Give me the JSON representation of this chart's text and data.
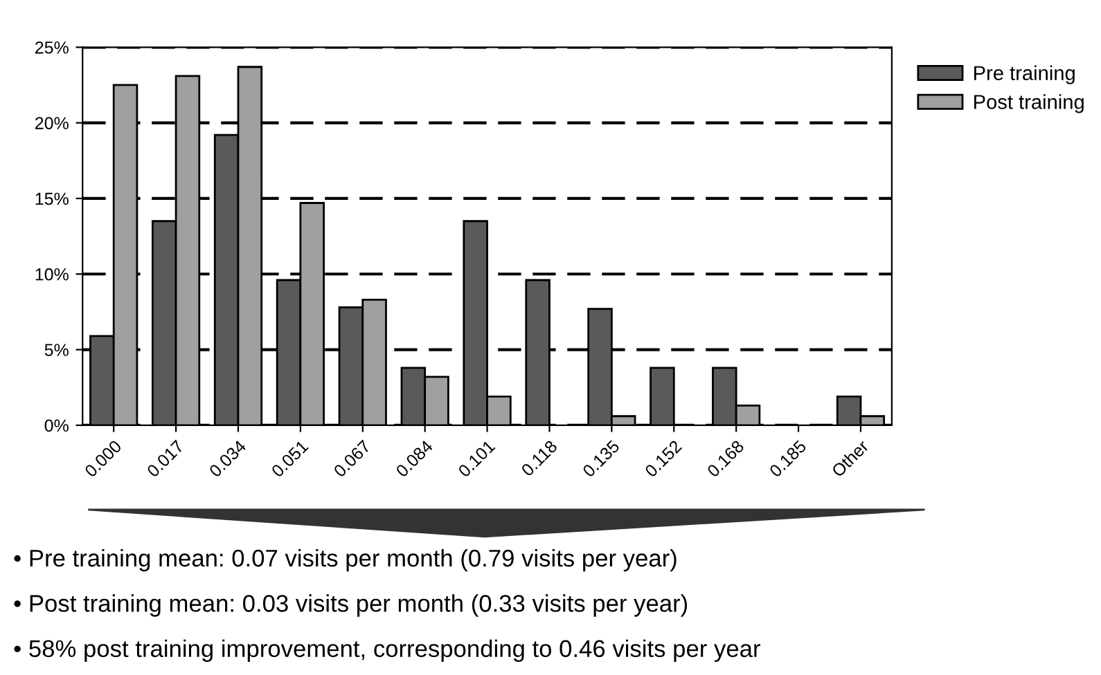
{
  "chart_data": {
    "type": "bar",
    "categories": [
      "0.000",
      "0.017",
      "0.034",
      "0.051",
      "0.067",
      "0.084",
      "0.101",
      "0.118",
      "0.135",
      "0.152",
      "0.168",
      "0.185",
      "Other"
    ],
    "series": [
      {
        "name": "Pre training",
        "color": "#5a5a5a",
        "values": [
          5.9,
          13.5,
          19.2,
          9.6,
          7.8,
          3.8,
          13.5,
          9.6,
          7.7,
          3.8,
          3.8,
          null,
          1.9
        ]
      },
      {
        "name": "Post training",
        "color": "#a0a0a0",
        "values": [
          22.5,
          23.1,
          23.7,
          14.7,
          8.3,
          3.2,
          1.9,
          null,
          0.6,
          null,
          1.3,
          null,
          0.6
        ]
      }
    ],
    "ylim": [
      0,
      25
    ],
    "yticks": [
      {
        "value": 0,
        "label": "0%"
      },
      {
        "value": 5,
        "label": "5%"
      },
      {
        "value": 10,
        "label": "10%"
      },
      {
        "value": 15,
        "label": "15%"
      },
      {
        "value": 20,
        "label": "20%"
      },
      {
        "value": 25,
        "label": "25%"
      }
    ],
    "grid": "y",
    "legend": "top right",
    "annotations": [
      "• Pre training mean: 0.07 visits per month (0.79 visits per year)",
      "• Post training mean: 0.03 visits per month (0.33 visits per year)",
      "• 58% post training improvement, corresponding to 0.46 visits per year"
    ]
  }
}
